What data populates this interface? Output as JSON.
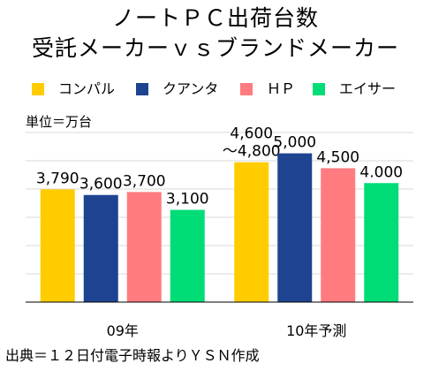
{
  "title_line1": "ノートＰＣ出荷台数",
  "title_line2": "受託メーカーｖｓブランドメーカー",
  "unit_label": "単位＝万台",
  "source_note": "出典＝１２日付電子時報よりＹＳＮ作成",
  "chart_data": {
    "type": "bar",
    "categories": [
      "09年",
      "10年予測"
    ],
    "series": [
      {
        "name": "コンパル",
        "color": "#FFCC00",
        "values": [
          3790,
          4700
        ],
        "labels": [
          "3,790",
          "4,600\n～4,800"
        ]
      },
      {
        "name": "クアンタ",
        "color": "#1E4391",
        "values": [
          3600,
          5000
        ],
        "labels": [
          "3,600",
          "5,000"
        ]
      },
      {
        "name": "ＨＰ",
        "color": "#FF7B7F",
        "values": [
          3700,
          4500
        ],
        "labels": [
          "3,700",
          "4,500"
        ]
      },
      {
        "name": "エイサー",
        "color": "#00DD77",
        "values": [
          3100,
          4000
        ],
        "labels": [
          "3,100",
          "4.000"
        ]
      }
    ],
    "ylim": [
      0,
      5700
    ],
    "grid": true,
    "legend": "top"
  }
}
